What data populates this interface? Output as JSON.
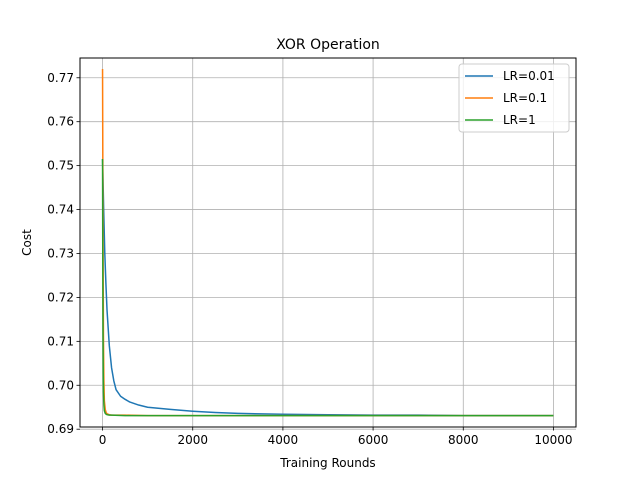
{
  "chart_data": {
    "type": "line",
    "title": "XOR Operation",
    "xlabel": "Training Rounds",
    "ylabel": "Cost",
    "xlim": [
      -500,
      10500
    ],
    "ylim": [
      0.6905,
      0.7745
    ],
    "xticks": [
      0,
      2000,
      4000,
      6000,
      8000,
      10000
    ],
    "yticks": [
      0.69,
      0.7,
      0.71,
      0.72,
      0.73,
      0.74,
      0.75,
      0.76,
      0.77
    ],
    "grid": true,
    "legend_position": "top-right",
    "series": [
      {
        "name": "LR=0.01",
        "color": "#1f77b4",
        "x": [
          0,
          10,
          25,
          50,
          75,
          100,
          150,
          200,
          250,
          300,
          400,
          500,
          600,
          800,
          1000,
          1500,
          2000,
          2500,
          3000,
          4000,
          5000,
          6000,
          7000,
          8000,
          9000,
          10000
        ],
        "y": [
          0.7515,
          0.747,
          0.74,
          0.73,
          0.723,
          0.717,
          0.709,
          0.704,
          0.701,
          0.699,
          0.6975,
          0.6968,
          0.6962,
          0.6955,
          0.695,
          0.6945,
          0.6941,
          0.6938,
          0.6936,
          0.6934,
          0.6933,
          0.6932,
          0.6932,
          0.6931,
          0.6931,
          0.6931
        ]
      },
      {
        "name": "LR=0.1",
        "color": "#ff7f0e",
        "x": [
          0,
          5,
          10,
          15,
          20,
          30,
          40,
          60,
          80,
          100,
          150,
          200,
          500,
          1000,
          2000,
          4000,
          6000,
          8000,
          10000
        ],
        "y": [
          0.772,
          0.755,
          0.738,
          0.723,
          0.711,
          0.701,
          0.6965,
          0.6945,
          0.6938,
          0.6935,
          0.6933,
          0.6932,
          0.6932,
          0.6931,
          0.6931,
          0.6931,
          0.6931,
          0.6931,
          0.6931
        ]
      },
      {
        "name": "LR=1",
        "color": "#2ca02c",
        "x": [
          0,
          5,
          10,
          15,
          20,
          30,
          40,
          60,
          80,
          100,
          150,
          200,
          500,
          1000,
          2000,
          4000,
          6000,
          8000,
          10000
        ],
        "y": [
          0.7515,
          0.73,
          0.712,
          0.703,
          0.6985,
          0.6955,
          0.6942,
          0.6936,
          0.6934,
          0.6933,
          0.6932,
          0.6932,
          0.6931,
          0.6931,
          0.6931,
          0.6931,
          0.6931,
          0.6931,
          0.6931
        ]
      }
    ]
  }
}
